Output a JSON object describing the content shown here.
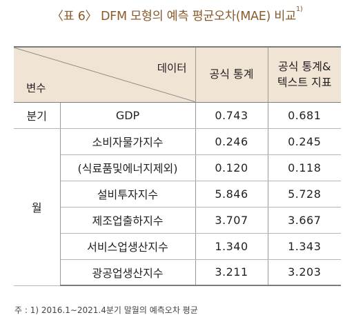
{
  "title": {
    "text": "〈표 6〉 DFM 모형의 예측 평균오차(MAE) 비교",
    "sup": "1)"
  },
  "table": {
    "header": {
      "corner_top": "데이터",
      "corner_bottom": "변수",
      "col3": "공식 통계",
      "col4_line1": "공식 통계&",
      "col4_line2": "텍스트 지표"
    },
    "categories": {
      "quarterly": "분기",
      "monthly": "월"
    },
    "rows": [
      {
        "name": "GDP",
        "official": "0.743",
        "official_text": "0.681"
      },
      {
        "name": "소비자물가지수",
        "official": "0.246",
        "official_text": "0.245"
      },
      {
        "name": "(식료품및에너지제외)",
        "official": "0.120",
        "official_text": "0.118"
      },
      {
        "name": "설비투자지수",
        "official": "5.846",
        "official_text": "5.728"
      },
      {
        "name": "제조업출하지수",
        "official": "3.707",
        "official_text": "3.667"
      },
      {
        "name": "서비스업생산지수",
        "official": "1.340",
        "official_text": "1.343"
      },
      {
        "name": "광공업생산지수",
        "official": "3.211",
        "official_text": "3.203"
      }
    ]
  },
  "note": "주 : 1) 2016.1∼2021.4분기 말월의 예측오차 평균"
}
